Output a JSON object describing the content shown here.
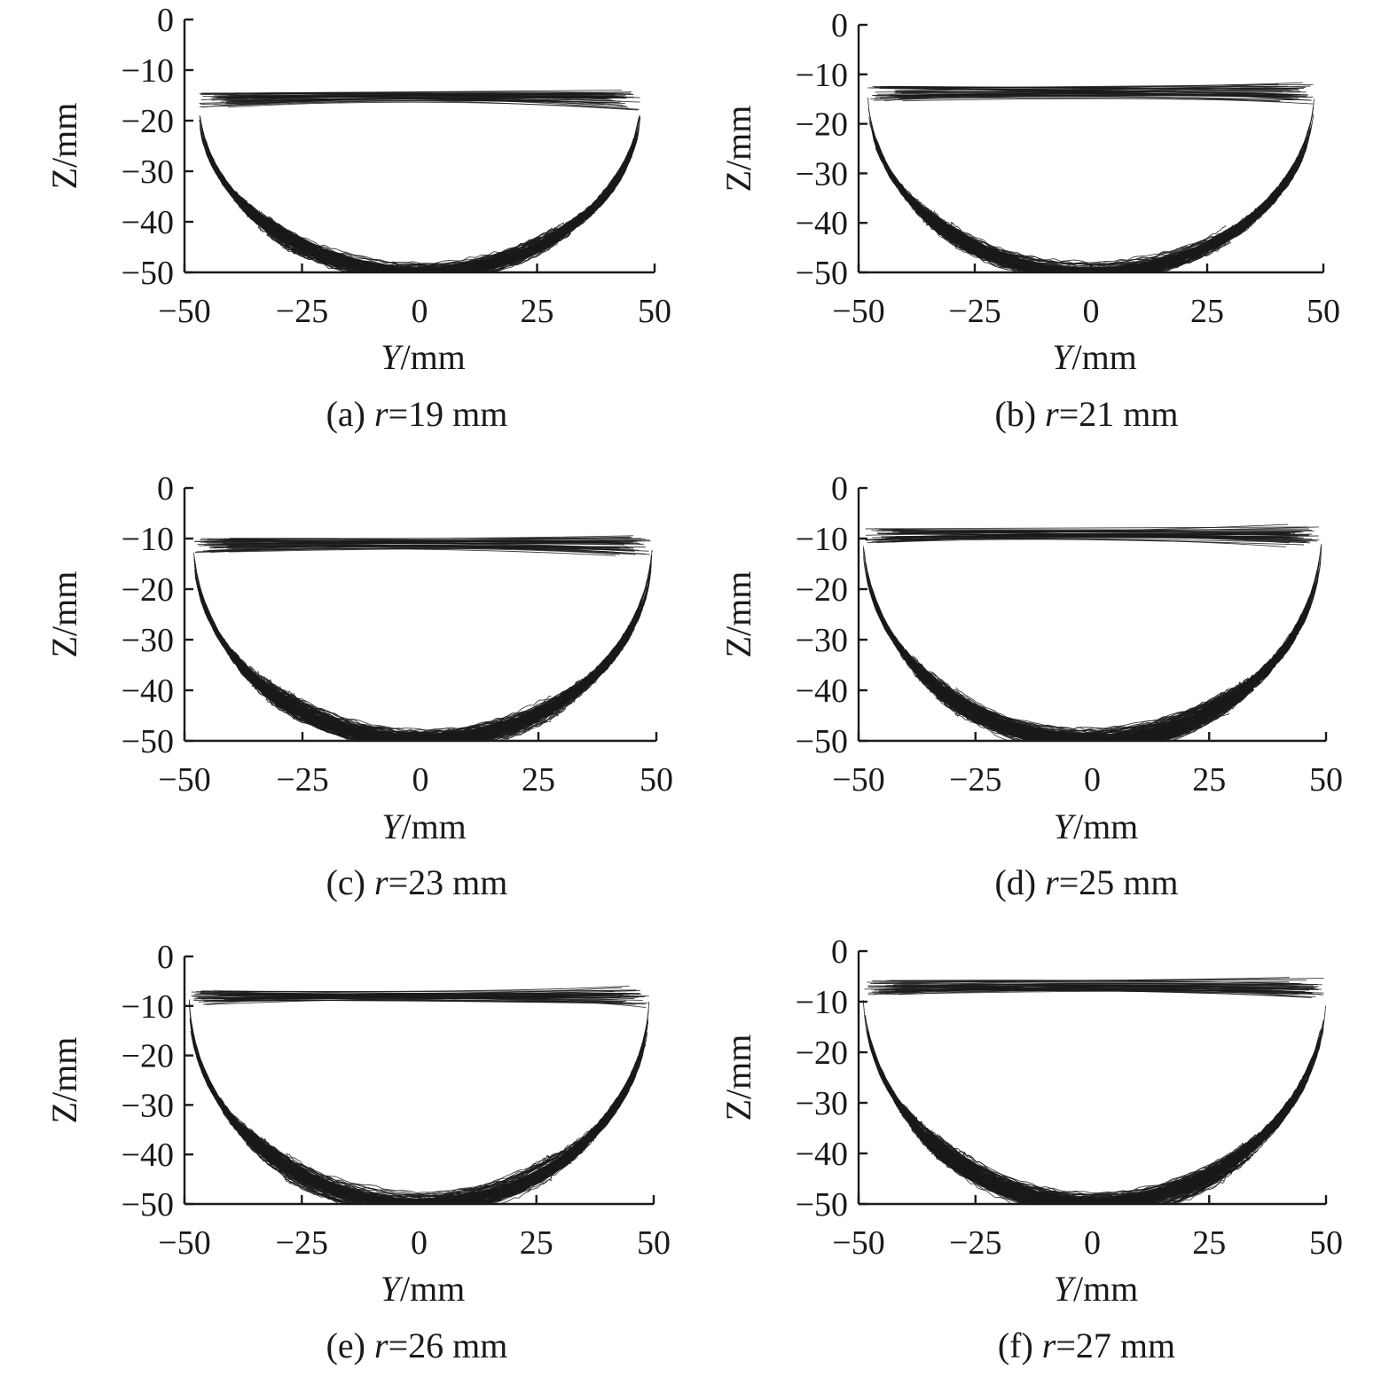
{
  "chart_data": [
    {
      "type": "line",
      "panel": "(a)",
      "caption_parts": [
        "(a) ",
        "r",
        "=19 mm"
      ],
      "r_mm": 19,
      "xlabel_parts": [
        "Y",
        "/mm"
      ],
      "ylabel": "Z/mm",
      "xlim": [
        -50,
        50
      ],
      "ylim": [
        -50,
        0
      ],
      "xticks": [
        "−50",
        "−25",
        "0",
        "25",
        "50"
      ],
      "yticks": [
        "0",
        "−10",
        "−20",
        "−30",
        "−40",
        "−50"
      ],
      "envelope": {
        "rim_z_left": -17,
        "rim_z_right": -16,
        "rim_z_mid": -16.5,
        "rim_z_peak": -15,
        "bottom_z": -50,
        "y_min": -47,
        "y_max": 47
      },
      "grid": false
    },
    {
      "type": "line",
      "panel": "(b)",
      "caption_parts": [
        "(b) ",
        "r",
        "=21 mm"
      ],
      "r_mm": 21,
      "xlabel_parts": [
        "Y",
        "/mm"
      ],
      "ylabel": "Z/mm",
      "xlim": [
        -50,
        50
      ],
      "ylim": [
        -50,
        0
      ],
      "xticks": [
        "−50",
        "−25",
        "0",
        "25",
        "50"
      ],
      "yticks": [
        "0",
        "−10",
        "−20",
        "−30",
        "−40",
        "−50"
      ],
      "envelope": {
        "rim_z_left": -15,
        "rim_z_right": -14,
        "rim_z_mid": -15,
        "rim_z_peak": -13.5,
        "bottom_z": -50,
        "y_min": -48,
        "y_max": 48
      },
      "grid": false
    },
    {
      "type": "line",
      "panel": "(c)",
      "caption_parts": [
        "(c) ",
        "r",
        "=23 mm"
      ],
      "r_mm": 23,
      "xlabel_parts": [
        "Y",
        "/mm"
      ],
      "ylabel": "Z/mm",
      "xlim": [
        -50,
        50
      ],
      "ylim": [
        -50,
        0
      ],
      "xticks": [
        "−50",
        "−25",
        "0",
        "25",
        "50"
      ],
      "yticks": [
        "0",
        "−10",
        "−20",
        "−30",
        "−40",
        "−50"
      ],
      "envelope": {
        "rim_z_left": -12.5,
        "rim_z_right": -11.5,
        "rim_z_mid": -12,
        "rim_z_peak": -11,
        "bottom_z": -50,
        "y_min": -48,
        "y_max": 49
      },
      "grid": false
    },
    {
      "type": "line",
      "panel": "(d)",
      "caption_parts": [
        "(d) ",
        "r",
        "=25 mm"
      ],
      "r_mm": 25,
      "xlabel_parts": [
        "Y",
        "/mm"
      ],
      "ylabel": "Z/mm",
      "xlim": [
        -50,
        50
      ],
      "ylim": [
        -50,
        0
      ],
      "xticks": [
        "−50",
        "−25",
        "0",
        "25",
        "50"
      ],
      "yticks": [
        "0",
        "−10",
        "−20",
        "−30",
        "−40",
        "−50"
      ],
      "envelope": {
        "rim_z_left": -10.5,
        "rim_z_right": -9.5,
        "rim_z_mid": -10,
        "rim_z_peak": -9,
        "bottom_z": -50,
        "y_min": -49,
        "y_max": 49
      },
      "grid": false
    },
    {
      "type": "line",
      "panel": "(e)",
      "caption_parts": [
        "(e) ",
        "r",
        "=26 mm"
      ],
      "r_mm": 26,
      "xlabel_parts": [
        "Y",
        "/mm"
      ],
      "ylabel": "Z/mm",
      "xlim": [
        -50,
        50
      ],
      "ylim": [
        -50,
        0
      ],
      "xticks": [
        "−50",
        "−25",
        "0",
        "25",
        "50"
      ],
      "yticks": [
        "0",
        "−10",
        "−20",
        "−30",
        "−40",
        "−50"
      ],
      "envelope": {
        "rim_z_left": -9.5,
        "rim_z_right": -8.5,
        "rim_z_mid": -9,
        "rim_z_peak": -8,
        "bottom_z": -50,
        "y_min": -49,
        "y_max": 49
      },
      "grid": false
    },
    {
      "type": "line",
      "panel": "(f)",
      "caption_parts": [
        "(f) ",
        "r",
        "=27 mm"
      ],
      "r_mm": 27,
      "xlabel_parts": [
        "Y",
        "/mm"
      ],
      "ylabel": "Z/mm",
      "xlim": [
        -50,
        50
      ],
      "ylim": [
        -50,
        0
      ],
      "xticks": [
        "−50",
        "−25",
        "0",
        "25",
        "50"
      ],
      "yticks": [
        "0",
        "−10",
        "−20",
        "−30",
        "−40",
        "−50"
      ],
      "envelope": {
        "rim_z_left": -8,
        "rim_z_right": -7.5,
        "rim_z_mid": -8,
        "rim_z_peak": -6.5,
        "bottom_z": -50,
        "y_min": -49,
        "y_max": 50
      },
      "grid": false
    }
  ]
}
